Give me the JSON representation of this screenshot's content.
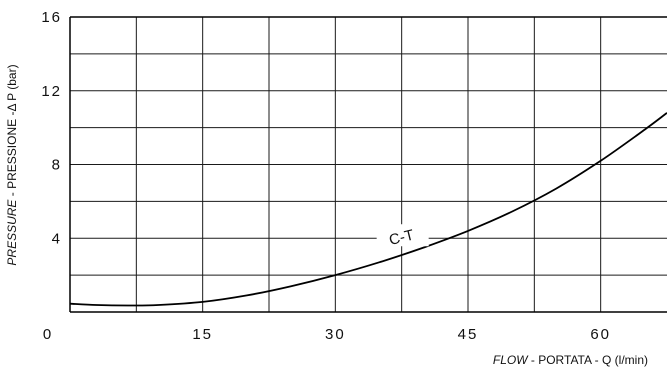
{
  "chart_data": {
    "type": "line",
    "title": "",
    "xlabel": {
      "italic": "FLOW",
      "rest": " - PORTATA - Q (l/min)"
    },
    "ylabel": {
      "italic": "PRESSURE",
      "rest": " - PRESSIONE -Δ P (bar)"
    },
    "xlim": [
      0,
      67.5
    ],
    "ylim": [
      0,
      16
    ],
    "x_ticks": [
      0,
      15,
      30,
      45,
      60
    ],
    "x_tick_labels": [
      "0",
      "15",
      "30",
      "45",
      "60"
    ],
    "y_ticks": [
      4,
      8,
      12,
      16
    ],
    "y_tick_labels": [
      "4",
      "8",
      "12",
      "16"
    ],
    "grid": true,
    "grid_x_step": 7.5,
    "grid_y_step": 2,
    "series": [
      {
        "name": "C-T",
        "x": [
          0,
          3,
          7,
          10,
          15,
          20,
          25,
          30,
          35,
          40,
          45,
          50,
          55,
          60,
          65,
          67.5
        ],
        "y": [
          0.45,
          0.38,
          0.35,
          0.38,
          0.55,
          0.9,
          1.4,
          2.0,
          2.7,
          3.5,
          4.4,
          5.45,
          6.7,
          8.2,
          9.9,
          10.8
        ]
      }
    ],
    "annotations": [
      {
        "text": "C-T",
        "x": 37.5,
        "y": 4.0
      }
    ]
  }
}
